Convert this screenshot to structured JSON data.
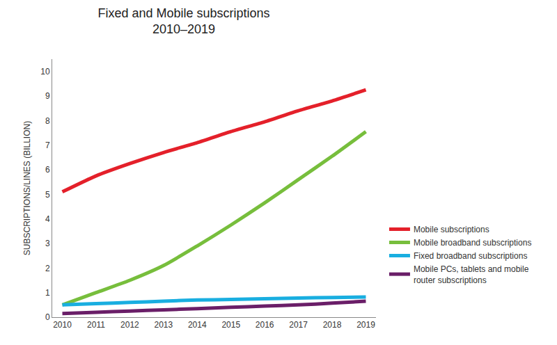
{
  "chart_data": {
    "type": "line",
    "title": "Fixed and Mobile subscriptions",
    "subtitle": "2010–2019",
    "y_label": "SUBSCRIPTIONS/LINES (BILLION)",
    "x": [
      2010,
      2011,
      2012,
      2013,
      2014,
      2015,
      2016,
      2017,
      2018,
      2019
    ],
    "series": [
      {
        "name": "Mobile subscriptions",
        "color": "#e4202a",
        "values": [
          5.1,
          5.75,
          6.25,
          6.7,
          7.1,
          7.55,
          7.95,
          8.4,
          8.8,
          9.25
        ]
      },
      {
        "name": "Mobile broadband subscriptions",
        "color": "#77be3c",
        "values": [
          0.5,
          1.0,
          1.5,
          2.1,
          2.9,
          3.75,
          4.65,
          5.6,
          6.55,
          7.55
        ]
      },
      {
        "name": "Fixed broadband subscriptions",
        "color": "#19aee0",
        "values": [
          0.5,
          0.55,
          0.6,
          0.65,
          0.7,
          0.72,
          0.75,
          0.78,
          0.8,
          0.82
        ]
      },
      {
        "name": "Mobile PCs, tablets and mobile router subscriptions",
        "color": "#6a1e68",
        "values": [
          0.15,
          0.2,
          0.25,
          0.3,
          0.35,
          0.4,
          0.45,
          0.5,
          0.57,
          0.65
        ]
      }
    ],
    "xlim": [
      2009.7,
      2019.3
    ],
    "xticks": [
      2010,
      2011,
      2012,
      2013,
      2014,
      2015,
      2016,
      2017,
      2018,
      2019
    ],
    "ylim": [
      0,
      10.5
    ],
    "yticks": [
      0,
      1,
      2,
      3,
      4,
      5,
      6,
      7,
      8,
      9,
      10
    ],
    "grid": false,
    "legend": "right"
  }
}
